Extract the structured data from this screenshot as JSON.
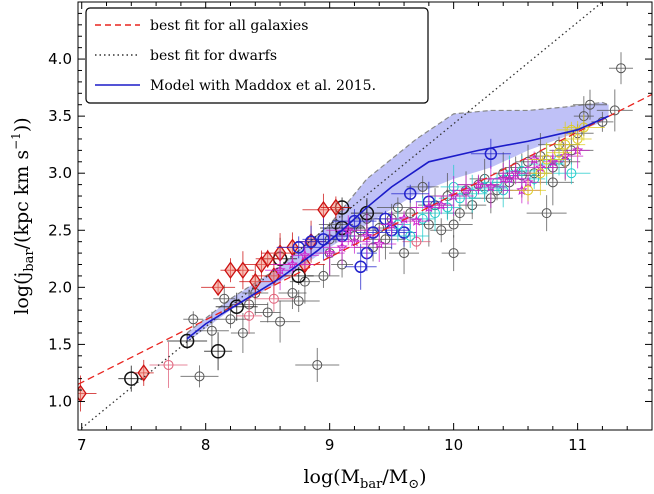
{
  "chart_data": {
    "type": "scatter",
    "title": "",
    "xlabel": "log(M_bar/M_⊙)",
    "ylabel": "log(j_bar/(kpc km s⁻¹))",
    "xlim": [
      6.97,
      11.6
    ],
    "ylim": [
      0.75,
      4.5
    ],
    "xticks": [
      "7",
      "8",
      "9",
      "10",
      "11"
    ],
    "yticks": [
      "1.0",
      "1.5",
      "2.0",
      "2.5",
      "3.0",
      "3.5",
      "4.0"
    ],
    "grid": false,
    "legend_position": "top-left",
    "lines": [
      {
        "name": "best fit for all galaxies",
        "style": "dashed",
        "color": "#e8241f",
        "x": [
          6.97,
          11.6
        ],
        "y": [
          1.15,
          3.69
        ]
      },
      {
        "name": "best fit for dwarfs",
        "style": "dotted",
        "color": "#333333",
        "x": [
          6.97,
          11.2
        ],
        "y": [
          0.74,
          4.5
        ]
      },
      {
        "name": "Model with Maddox et al. 2015.",
        "style": "solid",
        "color": "#1b1bc9",
        "x": [
          7.85,
          8.0,
          8.3,
          8.6,
          8.9,
          9.1,
          9.3,
          9.5,
          9.8,
          10.2,
          10.6,
          11.0,
          11.25
        ],
        "y": [
          1.55,
          1.68,
          1.88,
          2.08,
          2.32,
          2.5,
          2.7,
          2.88,
          3.1,
          3.2,
          3.28,
          3.38,
          3.5
        ]
      }
    ],
    "band": {
      "x": [
        7.85,
        8.2,
        8.6,
        9.0,
        9.3,
        9.7,
        10.0,
        10.3,
        10.6,
        10.9,
        11.2,
        11.25
      ],
      "lower": [
        1.52,
        1.8,
        2.05,
        2.35,
        2.55,
        2.82,
        2.95,
        3.05,
        3.2,
        3.32,
        3.45,
        3.5
      ],
      "upper": [
        1.6,
        1.9,
        2.18,
        2.55,
        2.95,
        3.3,
        3.52,
        3.55,
        3.55,
        3.58,
        3.62,
        3.6
      ]
    },
    "series": [
      {
        "marker": "circle-open",
        "color": "#555555",
        "points": [
          [
            7.9,
            1.72
          ],
          [
            8.05,
            1.62
          ],
          [
            8.15,
            1.9
          ],
          [
            8.2,
            1.72
          ],
          [
            8.3,
            1.6
          ],
          [
            8.35,
            1.85
          ],
          [
            8.5,
            1.78
          ],
          [
            8.6,
            1.7
          ],
          [
            8.7,
            1.95
          ],
          [
            8.75,
            1.88
          ],
          [
            8.8,
            2.05
          ],
          [
            8.9,
            1.32
          ],
          [
            8.95,
            2.1
          ],
          [
            9.0,
            2.3
          ],
          [
            9.05,
            2.55
          ],
          [
            9.1,
            2.2
          ],
          [
            9.2,
            2.45
          ],
          [
            9.3,
            2.6
          ],
          [
            9.35,
            2.35
          ],
          [
            9.4,
            2.52
          ],
          [
            9.45,
            2.42
          ],
          [
            9.5,
            2.6
          ],
          [
            9.55,
            2.7
          ],
          [
            9.6,
            2.3
          ],
          [
            9.65,
            2.65
          ],
          [
            9.75,
            2.88
          ],
          [
            9.8,
            2.55
          ],
          [
            9.85,
            2.72
          ],
          [
            9.9,
            2.5
          ],
          [
            9.95,
            2.8
          ],
          [
            10.0,
            2.3
          ],
          [
            10.0,
            2.55
          ],
          [
            10.05,
            2.65
          ],
          [
            10.1,
            2.85
          ],
          [
            10.15,
            2.72
          ],
          [
            10.2,
            2.9
          ],
          [
            10.25,
            2.95
          ],
          [
            10.3,
            2.78
          ],
          [
            10.35,
            2.85
          ],
          [
            10.4,
            3.0
          ],
          [
            10.45,
            2.92
          ],
          [
            10.5,
            3.05
          ],
          [
            10.55,
            2.98
          ],
          [
            10.6,
            3.1
          ],
          [
            10.65,
            3.0
          ],
          [
            10.7,
            3.15
          ],
          [
            10.75,
            2.65
          ],
          [
            10.8,
            3.05
          ],
          [
            10.85,
            3.25
          ],
          [
            10.9,
            3.1
          ],
          [
            10.95,
            3.2
          ],
          [
            11.0,
            3.35
          ],
          [
            11.05,
            3.5
          ],
          [
            11.1,
            3.6
          ],
          [
            11.2,
            3.45
          ],
          [
            11.3,
            3.55
          ],
          [
            11.35,
            3.92
          ],
          [
            7.95,
            1.22
          ],
          [
            8.4,
            1.95
          ],
          [
            9.0,
            2.42
          ],
          [
            9.25,
            2.5
          ],
          [
            10.8,
            2.92
          ]
        ]
      },
      {
        "marker": "circle-open-large",
        "color": "#111111",
        "points": [
          [
            7.4,
            1.2
          ],
          [
            7.85,
            1.53
          ],
          [
            8.1,
            1.44
          ],
          [
            8.25,
            1.83
          ],
          [
            8.75,
            2.1
          ],
          [
            9.1,
            2.52
          ],
          [
            9.3,
            2.65
          ],
          [
            9.1,
            2.7
          ],
          [
            8.6,
            2.25
          ]
        ]
      },
      {
        "marker": "diamond",
        "color": "#cc1111",
        "points": [
          [
            6.99,
            1.07
          ],
          [
            7.5,
            1.25
          ],
          [
            8.1,
            2.0
          ],
          [
            8.3,
            2.15
          ],
          [
            8.45,
            2.2
          ],
          [
            8.5,
            2.25
          ],
          [
            8.6,
            2.3
          ],
          [
            8.7,
            2.35
          ],
          [
            8.8,
            2.2
          ],
          [
            8.85,
            2.4
          ],
          [
            8.95,
            2.68
          ],
          [
            9.05,
            2.7
          ],
          [
            8.55,
            2.1
          ],
          [
            8.4,
            2.05
          ],
          [
            8.2,
            2.15
          ]
        ]
      },
      {
        "marker": "circle-open",
        "color": "#e0607a",
        "points": [
          [
            7.7,
            1.32
          ],
          [
            8.35,
            1.75
          ],
          [
            8.55,
            1.9
          ],
          [
            9.7,
            2.4
          ]
        ]
      },
      {
        "marker": "circle-open-medium",
        "color": "#2222cc",
        "points": [
          [
            9.2,
            2.58
          ],
          [
            9.25,
            2.18
          ],
          [
            9.3,
            2.3
          ],
          [
            9.35,
            2.48
          ],
          [
            9.45,
            2.6
          ],
          [
            9.5,
            2.5
          ],
          [
            9.6,
            2.48
          ],
          [
            9.65,
            2.82
          ],
          [
            9.8,
            2.75
          ],
          [
            10.3,
            3.17
          ],
          [
            9.1,
            2.45
          ],
          [
            8.95,
            2.42
          ],
          [
            8.85,
            2.4
          ],
          [
            8.75,
            2.35
          ]
        ]
      },
      {
        "marker": "circle-open",
        "color": "#22cccc",
        "points": [
          [
            9.55,
            2.55
          ],
          [
            9.65,
            2.45
          ],
          [
            9.75,
            2.6
          ],
          [
            9.85,
            2.65
          ],
          [
            9.95,
            2.7
          ],
          [
            10.05,
            2.78
          ],
          [
            10.15,
            2.82
          ],
          [
            10.25,
            2.87
          ],
          [
            10.35,
            2.92
          ],
          [
            10.45,
            2.98
          ],
          [
            10.55,
            3.02
          ],
          [
            10.65,
            2.95
          ],
          [
            10.75,
            3.08
          ],
          [
            10.85,
            3.12
          ],
          [
            10.95,
            3.0
          ],
          [
            10.0,
            2.88
          ],
          [
            10.4,
            2.85
          ]
        ]
      },
      {
        "marker": "star",
        "color": "#cc22cc",
        "points": [
          [
            9.0,
            2.3
          ],
          [
            9.1,
            2.35
          ],
          [
            9.2,
            2.4
          ],
          [
            9.3,
            2.45
          ],
          [
            9.4,
            2.38
          ],
          [
            9.5,
            2.55
          ],
          [
            9.6,
            2.6
          ],
          [
            9.7,
            2.58
          ],
          [
            9.8,
            2.7
          ],
          [
            9.9,
            2.72
          ],
          [
            10.0,
            2.8
          ],
          [
            10.1,
            2.85
          ],
          [
            10.2,
            2.9
          ],
          [
            10.3,
            2.88
          ],
          [
            10.4,
            2.95
          ],
          [
            10.5,
            3.0
          ],
          [
            10.6,
            2.92
          ],
          [
            10.7,
            3.05
          ],
          [
            10.8,
            3.1
          ],
          [
            10.9,
            3.15
          ],
          [
            11.0,
            3.2
          ],
          [
            10.55,
            2.85
          ],
          [
            10.65,
            3.12
          ],
          [
            10.45,
            2.95
          ],
          [
            8.8,
            2.28
          ],
          [
            8.7,
            2.2
          ],
          [
            8.6,
            2.15
          ],
          [
            9.15,
            2.5
          ]
        ]
      },
      {
        "marker": "circle-open",
        "color": "#ddcc22",
        "points": [
          [
            10.6,
            2.85
          ],
          [
            10.7,
            3.0
          ],
          [
            10.75,
            3.12
          ],
          [
            10.85,
            3.18
          ],
          [
            10.9,
            3.25
          ],
          [
            11.0,
            3.3
          ],
          [
            11.05,
            3.4
          ],
          [
            10.95,
            3.38
          ]
        ]
      }
    ]
  },
  "legend": {
    "items": [
      {
        "label": "best fit for all galaxies",
        "style": "dashed",
        "color": "#e8241f"
      },
      {
        "label": "best fit for dwarfs",
        "style": "dotted",
        "color": "#333333"
      },
      {
        "label": "Model with Maddox et al. 2015.",
        "style": "solid",
        "color": "#1b1bc9"
      }
    ]
  },
  "axes": {
    "xlabel_main": "log(M",
    "xlabel_sub": "bar",
    "xlabel_mid": "/M",
    "xlabel_sub2": "⊙",
    "xlabel_end": ")",
    "ylabel_main": "log(j",
    "ylabel_sub": "bar",
    "ylabel_mid": "/(kpc km s",
    "ylabel_sup": "−1",
    "ylabel_end": "))"
  }
}
